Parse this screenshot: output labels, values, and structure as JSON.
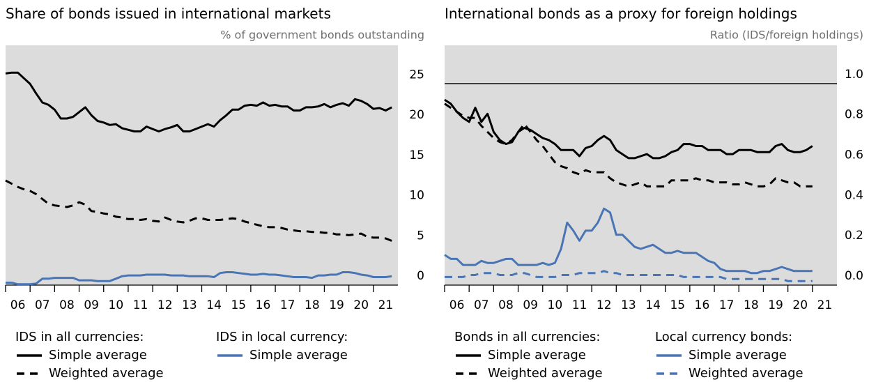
{
  "chart_data": [
    {
      "type": "line",
      "title": "Share of bonds issued in international markets",
      "subtitle": "% of government bonds outstanding",
      "xlim": [
        6,
        22
      ],
      "xticks": [
        {
          "value": 6.5,
          "label": "06"
        },
        {
          "value": 7.5,
          "label": "07"
        },
        {
          "value": 8.5,
          "label": "08"
        },
        {
          "value": 9.5,
          "label": "09"
        },
        {
          "value": 10.5,
          "label": "10"
        },
        {
          "value": 11.5,
          "label": "11"
        },
        {
          "value": 12.5,
          "label": "12"
        },
        {
          "value": 13.5,
          "label": "13"
        },
        {
          "value": 14.5,
          "label": "14"
        },
        {
          "value": 15.5,
          "label": "15"
        },
        {
          "value": 16.5,
          "label": "16"
        },
        {
          "value": 17.5,
          "label": "17"
        },
        {
          "value": 18.5,
          "label": "18"
        },
        {
          "value": 19.5,
          "label": "19"
        },
        {
          "value": 20.5,
          "label": "20"
        },
        {
          "value": 21.5,
          "label": "21"
        }
      ],
      "ylim": [
        0,
        29.8
      ],
      "yticks": [
        0,
        5,
        10,
        15,
        20,
        25
      ],
      "x": [
        6,
        6.25,
        6.5,
        6.75,
        7,
        7.25,
        7.5,
        7.75,
        8,
        8.25,
        8.5,
        8.75,
        9,
        9.25,
        9.5,
        9.75,
        10,
        10.25,
        10.5,
        10.75,
        11,
        11.25,
        11.5,
        11.75,
        12,
        12.25,
        12.5,
        12.75,
        13,
        13.25,
        13.5,
        13.75,
        14,
        14.25,
        14.5,
        14.75,
        15,
        15.25,
        15.5,
        15.75,
        16,
        16.25,
        16.5,
        16.75,
        17,
        17.25,
        17.5,
        17.75,
        18,
        18.25,
        18.5,
        18.75,
        19,
        19.25,
        19.5,
        19.75,
        20,
        20.25,
        20.5,
        20.75,
        21,
        21.25,
        21.5,
        21.75
      ],
      "series_groups": [
        {
          "title": "IDS in all currencies:",
          "series": [
            {
              "name": "Simple average",
              "color": "#000000",
              "dashed": false,
              "values": [
                26.3,
                26.4,
                26.4,
                25.7,
                25.0,
                23.8,
                22.7,
                22.4,
                21.8,
                20.7,
                20.7,
                20.9,
                21.5,
                22.1,
                21.1,
                20.4,
                20.2,
                19.9,
                20.0,
                19.5,
                19.3,
                19.1,
                19.1,
                19.7,
                19.4,
                19.1,
                19.4,
                19.6,
                19.9,
                19.1,
                19.1,
                19.4,
                19.7,
                20.0,
                19.7,
                20.5,
                21.1,
                21.8,
                21.8,
                22.3,
                22.4,
                22.3,
                22.7,
                22.3,
                22.4,
                22.2,
                22.2,
                21.7,
                21.7,
                22.1,
                22.1,
                22.2,
                22.5,
                22.1,
                22.4,
                22.6,
                22.3,
                23.1,
                22.9,
                22.5,
                21.9,
                22.0,
                21.7,
                22.1
              ]
            },
            {
              "name": "Weighted average",
              "color": "#000000",
              "dashed": true,
              "values": [
                13.0,
                12.6,
                12.2,
                11.9,
                11.7,
                11.3,
                10.7,
                10.1,
                9.9,
                9.8,
                9.7,
                9.9,
                10.3,
                10.0,
                9.2,
                9.1,
                8.9,
                8.8,
                8.5,
                8.4,
                8.2,
                8.2,
                8.1,
                8.2,
                8.0,
                7.9,
                8.4,
                8.1,
                7.9,
                7.8,
                8.0,
                8.3,
                8.3,
                8.1,
                8.1,
                8.1,
                8.2,
                8.3,
                8.2,
                7.9,
                7.7,
                7.5,
                7.3,
                7.2,
                7.2,
                7.1,
                6.9,
                6.8,
                6.7,
                6.7,
                6.6,
                6.6,
                6.5,
                6.5,
                6.3,
                6.3,
                6.2,
                6.3,
                6.4,
                6.0,
                5.9,
                5.9,
                5.8,
                5.5
              ]
            }
          ]
        },
        {
          "title": "IDS in local currency:",
          "series": [
            {
              "name": "Simple average",
              "color": "#4a75b5",
              "dashed": false,
              "values": [
                0.3,
                0.3,
                0.1,
                0.1,
                0.1,
                0.2,
                0.8,
                0.8,
                0.9,
                0.9,
                0.9,
                0.9,
                0.6,
                0.6,
                0.6,
                0.5,
                0.5,
                0.5,
                0.8,
                1.1,
                1.2,
                1.2,
                1.2,
                1.3,
                1.3,
                1.3,
                1.3,
                1.2,
                1.2,
                1.2,
                1.1,
                1.1,
                1.1,
                1.1,
                1.0,
                1.5,
                1.6,
                1.6,
                1.5,
                1.4,
                1.3,
                1.3,
                1.4,
                1.3,
                1.3,
                1.2,
                1.1,
                1.0,
                1.0,
                1.0,
                0.9,
                1.2,
                1.2,
                1.3,
                1.3,
                1.6,
                1.6,
                1.5,
                1.3,
                1.2,
                1.0,
                1.0,
                1.0,
                1.1
              ]
            }
          ]
        }
      ]
    },
    {
      "type": "line",
      "title": "International bonds as a proxy for foreign holdings",
      "subtitle": "Ratio (IDS/foreign holdings)",
      "xlim": [
        6,
        22
      ],
      "xticks": [
        {
          "value": 6.5,
          "label": "06"
        },
        {
          "value": 7.5,
          "label": "07"
        },
        {
          "value": 8.5,
          "label": "08"
        },
        {
          "value": 9.5,
          "label": "09"
        },
        {
          "value": 10.5,
          "label": "10"
        },
        {
          "value": 11.5,
          "label": "11"
        },
        {
          "value": 12.5,
          "label": "12"
        },
        {
          "value": 13.5,
          "label": "13"
        },
        {
          "value": 14.5,
          "label": "14"
        },
        {
          "value": 15.5,
          "label": "15"
        },
        {
          "value": 16.5,
          "label": "16"
        },
        {
          "value": 17.5,
          "label": "17"
        },
        {
          "value": 18.5,
          "label": "18"
        },
        {
          "value": 19.5,
          "label": "19"
        },
        {
          "value": 20.5,
          "label": "20"
        },
        {
          "value": 21.5,
          "label": "21"
        }
      ],
      "ylim": [
        0,
        1.19
      ],
      "yticks": [
        {
          "value": 0,
          "label": "0.0"
        },
        0.2,
        0.4,
        0.6,
        0.8,
        {
          "value": 1,
          "label": "1.0"
        }
      ],
      "reference_line": 1,
      "x": [
        6,
        6.25,
        6.5,
        6.75,
        7,
        7.25,
        7.5,
        7.75,
        8,
        8.25,
        8.5,
        8.75,
        9,
        9.25,
        9.5,
        9.75,
        10,
        10.25,
        10.5,
        10.75,
        11,
        11.25,
        11.5,
        11.75,
        12,
        12.25,
        12.5,
        12.75,
        13,
        13.25,
        13.5,
        13.75,
        14,
        14.25,
        14.5,
        14.75,
        15,
        15.25,
        15.5,
        15.75,
        16,
        16.25,
        16.5,
        16.75,
        17,
        17.25,
        17.5,
        17.75,
        18,
        18.25,
        18.5,
        18.75,
        19,
        19.25,
        19.5,
        19.75,
        20,
        20.25,
        20.5,
        20.75,
        21
      ],
      "series_groups": [
        {
          "title": "Bonds in all currencies:",
          "series": [
            {
              "name": "Simple average",
              "color": "#000000",
              "dashed": false,
              "values": [
                0.92,
                0.9,
                0.86,
                0.83,
                0.81,
                0.88,
                0.81,
                0.85,
                0.76,
                0.72,
                0.7,
                0.71,
                0.76,
                0.78,
                0.77,
                0.75,
                0.73,
                0.72,
                0.7,
                0.67,
                0.67,
                0.67,
                0.64,
                0.68,
                0.69,
                0.72,
                0.74,
                0.72,
                0.67,
                0.65,
                0.63,
                0.63,
                0.64,
                0.65,
                0.63,
                0.63,
                0.64,
                0.66,
                0.67,
                0.7,
                0.7,
                0.69,
                0.69,
                0.67,
                0.67,
                0.67,
                0.65,
                0.65,
                0.67,
                0.67,
                0.67,
                0.66,
                0.66,
                0.66,
                0.69,
                0.7,
                0.67,
                0.66,
                0.66,
                0.67,
                0.69
              ]
            },
            {
              "name": "Weighted average",
              "color": "#000000",
              "dashed": true,
              "values": [
                0.9,
                0.88,
                0.86,
                0.84,
                0.83,
                0.83,
                0.79,
                0.76,
                0.73,
                0.71,
                0.7,
                0.72,
                0.76,
                0.8,
                0.76,
                0.72,
                0.69,
                0.65,
                0.61,
                0.59,
                0.58,
                0.56,
                0.55,
                0.57,
                0.56,
                0.56,
                0.56,
                0.53,
                0.51,
                0.5,
                0.49,
                0.5,
                0.51,
                0.49,
                0.49,
                0.49,
                0.49,
                0.52,
                0.52,
                0.52,
                0.52,
                0.53,
                0.52,
                0.52,
                0.51,
                0.51,
                0.51,
                0.5,
                0.5,
                0.51,
                0.5,
                0.49,
                0.49,
                0.5,
                0.53,
                0.52,
                0.51,
                0.51,
                0.49,
                0.49,
                0.49
              ]
            }
          ]
        },
        {
          "title": "Local currency bonds:",
          "series": [
            {
              "name": "Simple average",
              "color": "#4a75b5",
              "dashed": false,
              "values": [
                0.15,
                0.13,
                0.13,
                0.1,
                0.1,
                0.1,
                0.12,
                0.11,
                0.11,
                0.12,
                0.13,
                0.13,
                0.1,
                0.1,
                0.1,
                0.1,
                0.11,
                0.1,
                0.11,
                0.18,
                0.31,
                0.27,
                0.22,
                0.27,
                0.27,
                0.31,
                0.38,
                0.36,
                0.25,
                0.25,
                0.22,
                0.19,
                0.18,
                0.19,
                0.2,
                0.18,
                0.16,
                0.16,
                0.17,
                0.16,
                0.16,
                0.16,
                0.14,
                0.12,
                0.11,
                0.08,
                0.07,
                0.07,
                0.07,
                0.07,
                0.06,
                0.06,
                0.07,
                0.07,
                0.08,
                0.09,
                0.08,
                0.07,
                0.07,
                0.07,
                0.07
              ]
            },
            {
              "name": "Weighted average",
              "color": "#4a75b5",
              "dashed": true,
              "values": [
                0.04,
                0.04,
                0.04,
                0.04,
                0.05,
                0.05,
                0.06,
                0.06,
                0.06,
                0.05,
                0.05,
                0.05,
                0.06,
                0.06,
                0.05,
                0.04,
                0.04,
                0.04,
                0.04,
                0.05,
                0.05,
                0.05,
                0.06,
                0.06,
                0.06,
                0.06,
                0.07,
                0.06,
                0.06,
                0.05,
                0.05,
                0.05,
                0.05,
                0.05,
                0.05,
                0.05,
                0.05,
                0.05,
                0.05,
                0.04,
                0.04,
                0.04,
                0.04,
                0.04,
                0.04,
                0.04,
                0.03,
                0.03,
                0.03,
                0.03,
                0.03,
                0.03,
                0.03,
                0.03,
                0.03,
                0.03,
                0.02,
                0.02,
                0.02,
                0.02,
                0.02
              ]
            }
          ]
        }
      ]
    }
  ]
}
